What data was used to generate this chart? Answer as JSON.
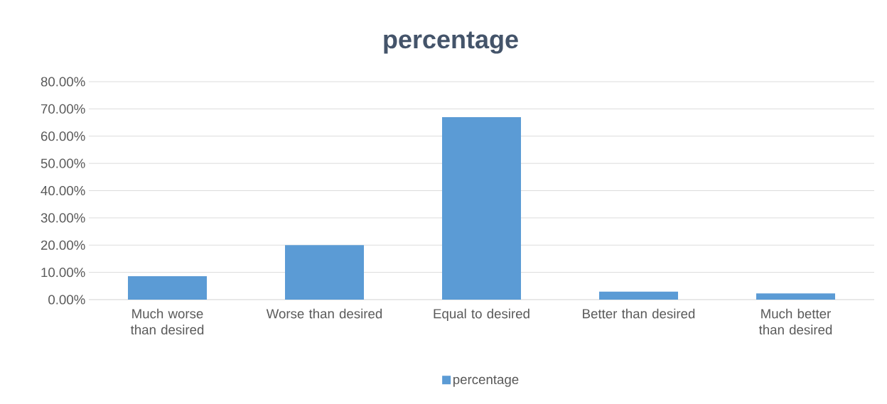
{
  "chart_data": {
    "type": "bar",
    "title": "percentage",
    "categories": [
      "Much worse than desired",
      "Worse than desired",
      "Equal to desired",
      "Better than desired",
      "Much better than desired"
    ],
    "series": [
      {
        "name": "percentage",
        "color": "#5b9bd5",
        "values": [
          8.6,
          20,
          67,
          2.9,
          2.3
        ]
      }
    ],
    "ylim": [
      0,
      80
    ],
    "yticks": [
      {
        "value": 0,
        "label": "0.00%"
      },
      {
        "value": 10,
        "label": "10.00%"
      },
      {
        "value": 20,
        "label": "20.00%"
      },
      {
        "value": 30,
        "label": "30.00%"
      },
      {
        "value": 40,
        "label": "40.00%"
      },
      {
        "value": 50,
        "label": "50.00%"
      },
      {
        "value": 60,
        "label": "60.00%"
      },
      {
        "value": 70,
        "label": "70.00%"
      },
      {
        "value": 80,
        "label": "80.00%"
      }
    ],
    "grid": "y",
    "legend": "bottom"
  }
}
